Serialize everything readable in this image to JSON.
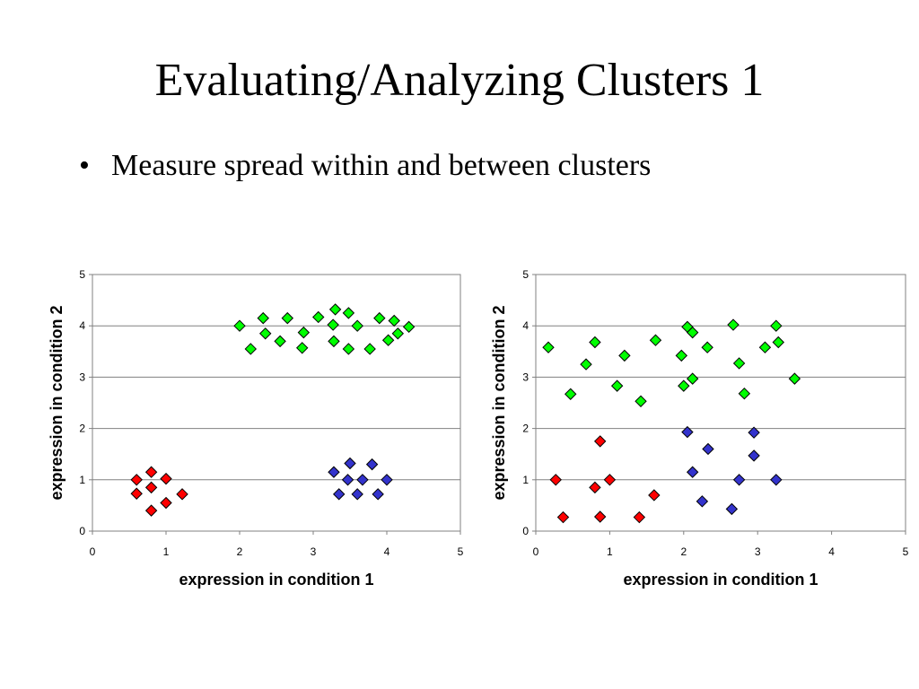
{
  "slide": {
    "title": "Evaluating/Analyzing Clusters 1",
    "bullet": "Measure spread within and between clusters"
  },
  "chart_data": [
    {
      "type": "scatter",
      "xlabel": "expression in condition 1",
      "ylabel": "expression in condition 2",
      "xlim": [
        0,
        5
      ],
      "ylim": [
        0,
        5
      ],
      "xticks": [
        "0",
        "1",
        "2",
        "3",
        "4",
        "5"
      ],
      "yticks": [
        "0",
        "1",
        "2",
        "3",
        "4",
        "5"
      ],
      "grid": "horizontal",
      "series": [
        {
          "color": "#ff0000",
          "points": [
            [
              0.6,
              1.0
            ],
            [
              0.8,
              1.15
            ],
            [
              1.0,
              1.02
            ],
            [
              0.6,
              0.73
            ],
            [
              0.8,
              0.85
            ],
            [
              1.22,
              0.72
            ],
            [
              1.0,
              0.55
            ],
            [
              0.8,
              0.4
            ]
          ]
        },
        {
          "color": "#00ff00",
          "points": [
            [
              2.0,
              4.0
            ],
            [
              2.15,
              3.55
            ],
            [
              2.32,
              4.15
            ],
            [
              2.35,
              3.85
            ],
            [
              2.55,
              3.7
            ],
            [
              2.65,
              4.15
            ],
            [
              2.85,
              3.57
            ],
            [
              2.87,
              3.87
            ],
            [
              3.07,
              4.17
            ],
            [
              3.27,
              4.02
            ],
            [
              3.28,
              3.7
            ],
            [
              3.3,
              4.32
            ],
            [
              3.48,
              4.25
            ],
            [
              3.48,
              3.55
            ],
            [
              3.6,
              4.0
            ],
            [
              3.77,
              3.55
            ],
            [
              3.9,
              4.15
            ],
            [
              4.02,
              3.72
            ],
            [
              4.1,
              4.1
            ],
            [
              4.15,
              3.85
            ],
            [
              4.3,
              3.98
            ]
          ]
        },
        {
          "color": "#3333cc",
          "points": [
            [
              3.28,
              1.15
            ],
            [
              3.35,
              0.72
            ],
            [
              3.47,
              1.0
            ],
            [
              3.5,
              1.32
            ],
            [
              3.6,
              0.72
            ],
            [
              3.67,
              1.0
            ],
            [
              3.8,
              1.3
            ],
            [
              3.88,
              0.72
            ],
            [
              4.0,
              1.0
            ]
          ]
        }
      ]
    },
    {
      "type": "scatter",
      "xlabel": "expression in condition 1",
      "ylabel": "expression in condition 2",
      "xlim": [
        0,
        5
      ],
      "ylim": [
        0,
        5
      ],
      "xticks": [
        "0",
        "1",
        "2",
        "3",
        "4",
        "5"
      ],
      "yticks": [
        "0",
        "1",
        "2",
        "3",
        "4",
        "5"
      ],
      "grid": "horizontal",
      "series": [
        {
          "color": "#ff0000",
          "points": [
            [
              0.27,
              1.0
            ],
            [
              0.37,
              0.27
            ],
            [
              0.8,
              0.85
            ],
            [
              0.87,
              1.75
            ],
            [
              0.87,
              0.28
            ],
            [
              1.0,
              1.0
            ],
            [
              1.4,
              0.27
            ],
            [
              1.6,
              0.7
            ]
          ]
        },
        {
          "color": "#00ff00",
          "points": [
            [
              0.17,
              3.58
            ],
            [
              0.47,
              2.67
            ],
            [
              0.68,
              3.25
            ],
            [
              0.8,
              3.68
            ],
            [
              1.1,
              2.83
            ],
            [
              1.2,
              3.42
            ],
            [
              1.42,
              2.53
            ],
            [
              1.62,
              3.72
            ],
            [
              1.97,
              3.42
            ],
            [
              2.0,
              2.83
            ],
            [
              2.05,
              3.98
            ],
            [
              2.12,
              3.87
            ],
            [
              2.12,
              2.97
            ],
            [
              2.32,
              3.58
            ],
            [
              2.67,
              4.02
            ],
            [
              2.75,
              3.27
            ],
            [
              2.82,
              2.68
            ],
            [
              3.1,
              3.58
            ],
            [
              3.25,
              4.0
            ],
            [
              3.28,
              3.68
            ],
            [
              3.5,
              2.97
            ]
          ]
        },
        {
          "color": "#3333cc",
          "points": [
            [
              2.05,
              1.93
            ],
            [
              2.12,
              1.15
            ],
            [
              2.25,
              0.58
            ],
            [
              2.33,
              1.6
            ],
            [
              2.65,
              0.43
            ],
            [
              2.75,
              1.0
            ],
            [
              2.95,
              1.92
            ],
            [
              2.95,
              1.47
            ],
            [
              3.25,
              1.0
            ]
          ]
        }
      ]
    }
  ]
}
